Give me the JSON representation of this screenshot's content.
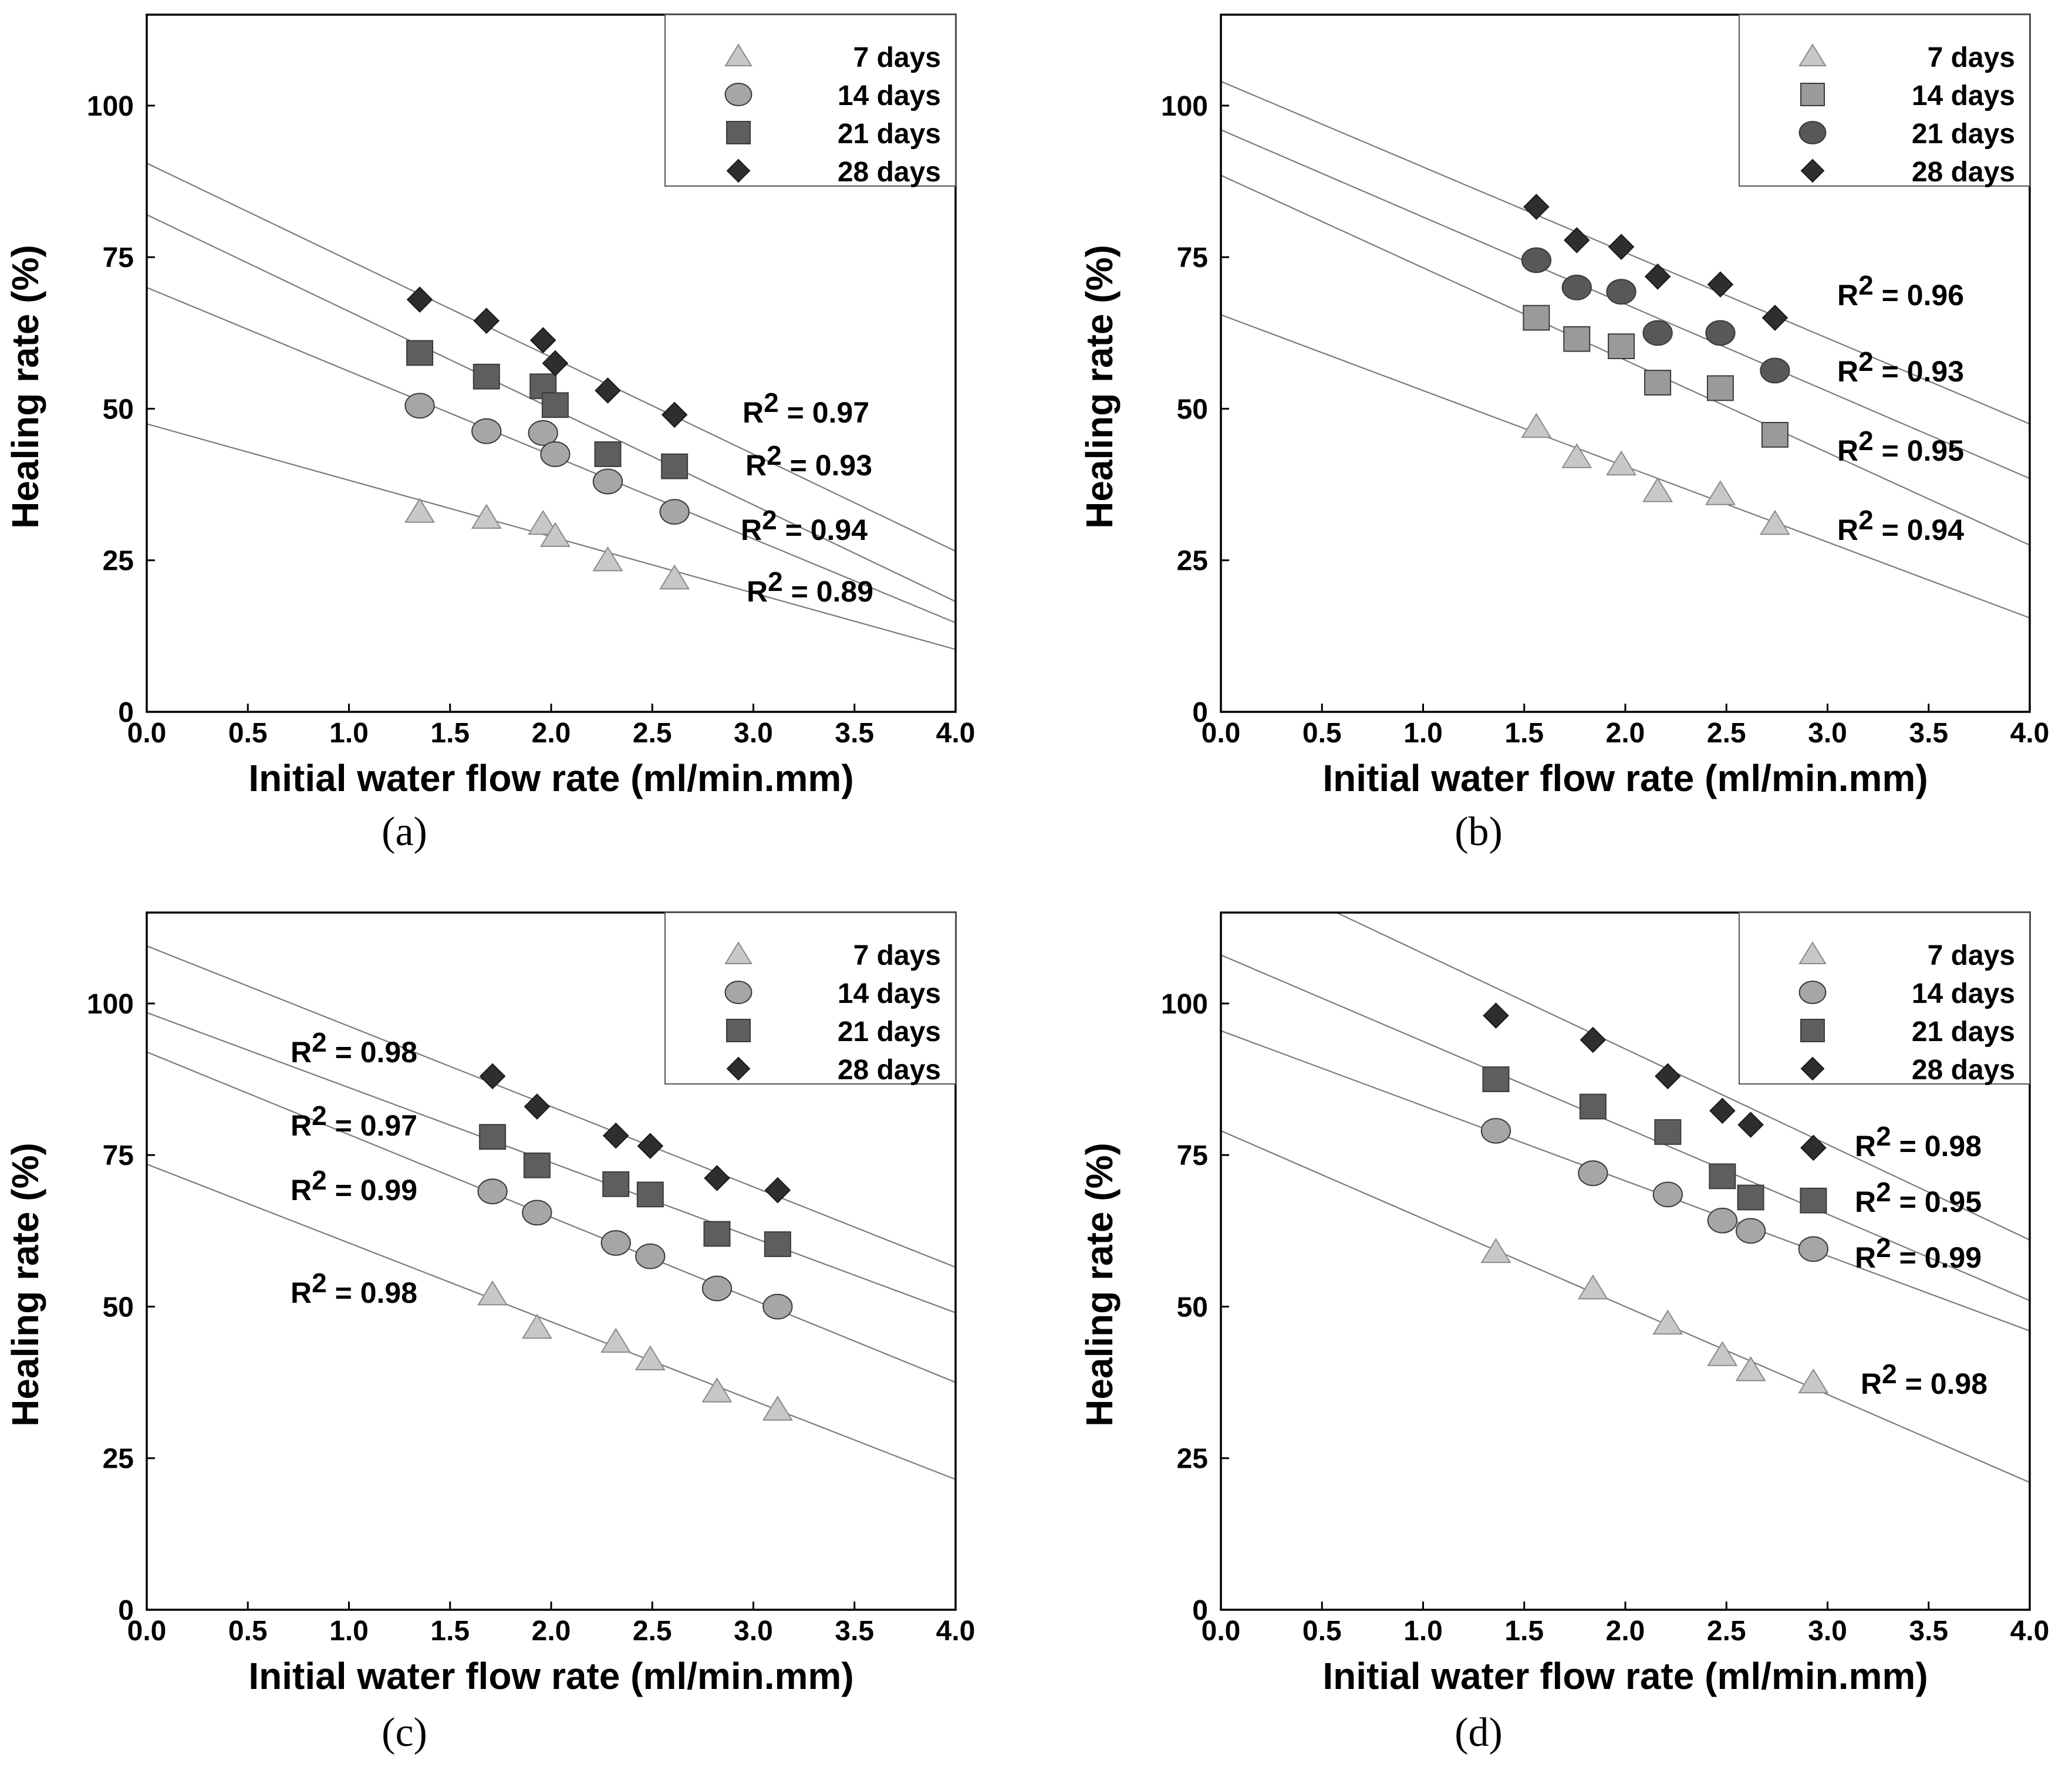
{
  "colors": {
    "7 days": "#c8c8c8",
    "14 days": "#a6a6a6",
    "21 days": "#5e5e5e",
    "28 days": "#2e2e2e",
    "14 days square": "#9a9a9a",
    "21 days circle": "#585858",
    "fit_line": "#7a7a7a",
    "axis": "#000000"
  },
  "chart_data": [
    {
      "id": "a",
      "type": "scatter",
      "panel_label": "(a)",
      "xlabel": "Initial water flow rate (ml/min.mm)",
      "ylabel": "Healing rate (%)",
      "xlim": [
        0,
        4
      ],
      "ylim": [
        0,
        115
      ],
      "xticks": [
        "0.0",
        "0.5",
        "1.0",
        "1.5",
        "2.0",
        "2.5",
        "3.0",
        "3.5",
        "4.0"
      ],
      "yticks": [
        "0",
        "25",
        "50",
        "75",
        "100"
      ],
      "legend_position": "top-right",
      "series": [
        {
          "name": "7 days",
          "marker": "triangle",
          "color_key": "7 days",
          "x": [
            1.35,
            1.68,
            1.96,
            2.02,
            2.28,
            2.61
          ],
          "y": [
            33,
            32,
            31,
            29,
            25,
            22
          ],
          "fit": [
            47.5,
            10.3
          ],
          "r2": "0.89"
        },
        {
          "name": "14 days",
          "marker": "circle",
          "color_key": "14 days",
          "x": [
            1.35,
            1.68,
            1.96,
            2.02,
            2.28,
            2.61
          ],
          "y": [
            50.5,
            46.3,
            46,
            42.5,
            38,
            33
          ],
          "fit": [
            70,
            14.7
          ],
          "r2": "0.94"
        },
        {
          "name": "21 days",
          "marker": "square",
          "color_key": "21 days",
          "x": [
            1.35,
            1.68,
            1.96,
            2.02,
            2.28,
            2.61
          ],
          "y": [
            59.2,
            55.3,
            53.7,
            50.6,
            42.5,
            40.5
          ],
          "fit": [
            82,
            18.2
          ],
          "r2": "0.93"
        },
        {
          "name": "28 days",
          "marker": "diamond",
          "color_key": "28 days",
          "x": [
            1.35,
            1.68,
            1.96,
            2.02,
            2.28,
            2.61
          ],
          "y": [
            68,
            64.5,
            61.3,
            57.5,
            53,
            49
          ],
          "fit": [
            90.5,
            26.5
          ],
          "r2": "0.97"
        }
      ],
      "r2_order": [
        "28 days",
        "21 days",
        "14 days",
        "7 days"
      ]
    },
    {
      "id": "b",
      "type": "scatter",
      "panel_label": "(b)",
      "xlabel": "Initial water flow rate (ml/min.mm)",
      "ylabel": "Healing rate (%)",
      "xlim": [
        0,
        4
      ],
      "ylim": [
        0,
        115
      ],
      "xticks": [
        "0.0",
        "0.5",
        "1.0",
        "1.5",
        "2.0",
        "2.5",
        "3.0",
        "3.5",
        "4.0"
      ],
      "yticks": [
        "0",
        "25",
        "50",
        "75",
        "100"
      ],
      "legend_position": "top-right",
      "series": [
        {
          "name": "7 days",
          "marker": "triangle",
          "color_key": "7 days",
          "x": [
            1.56,
            1.76,
            1.98,
            2.16,
            2.47,
            2.74
          ],
          "y": [
            47,
            42,
            40.8,
            36.4,
            35.9,
            31
          ],
          "fit": [
            65.5,
            15.5
          ],
          "r2": "0.94"
        },
        {
          "name": "14 days",
          "marker": "square",
          "color_key": "14 days square",
          "x": [
            1.56,
            1.76,
            1.98,
            2.16,
            2.47,
            2.74
          ],
          "y": [
            65,
            61.5,
            60.3,
            54.3,
            53.4,
            45.7
          ],
          "fit": [
            88.5,
            27.5
          ],
          "r2": "0.95"
        },
        {
          "name": "21 days",
          "marker": "circle",
          "color_key": "21 days circle",
          "x": [
            1.56,
            1.76,
            1.98,
            2.16,
            2.47,
            2.74
          ],
          "y": [
            74.5,
            70,
            69.3,
            62.5,
            62.5,
            56.3
          ],
          "fit": [
            96,
            38.5
          ],
          "r2": "0.93"
        },
        {
          "name": "28 days",
          "marker": "diamond",
          "color_key": "28 days",
          "x": [
            1.56,
            1.76,
            1.98,
            2.16,
            2.47,
            2.74
          ],
          "y": [
            83.3,
            77.8,
            76.7,
            71.8,
            70.5,
            65
          ],
          "fit": [
            104,
            47.5
          ],
          "r2": "0.96"
        }
      ],
      "r2_order": [
        "28 days",
        "21 days",
        "14 days",
        "7 days"
      ]
    },
    {
      "id": "c",
      "type": "scatter",
      "panel_label": "(c)",
      "xlabel": "Initial water flow rate (ml/min.mm)",
      "ylabel": "Healing rate (%)",
      "xlim": [
        0,
        4
      ],
      "ylim": [
        0,
        115
      ],
      "xticks": [
        "0.0",
        "0.5",
        "1.0",
        "1.5",
        "2.0",
        "2.5",
        "3.0",
        "3.5",
        "4.0"
      ],
      "yticks": [
        "0",
        "25",
        "50",
        "75",
        "100"
      ],
      "legend_position": "top-right",
      "series": [
        {
          "name": "7 days",
          "marker": "triangle",
          "color_key": "7 days",
          "x": [
            1.71,
            1.93,
            2.32,
            2.49,
            2.82,
            3.12
          ],
          "y": [
            52,
            46.5,
            44.2,
            41.3,
            36,
            33
          ],
          "fit": [
            73.5,
            21.5
          ],
          "r2": "0.98"
        },
        {
          "name": "14 days",
          "marker": "circle",
          "color_key": "14 days",
          "x": [
            1.71,
            1.93,
            2.32,
            2.49,
            2.82,
            3.12
          ],
          "y": [
            69,
            65.5,
            60.5,
            58.3,
            53,
            50
          ],
          "fit": [
            92,
            37.5
          ],
          "r2": "0.99"
        },
        {
          "name": "21 days",
          "marker": "square",
          "color_key": "21 days",
          "x": [
            1.71,
            1.93,
            2.32,
            2.49,
            2.82,
            3.12
          ],
          "y": [
            78,
            73.3,
            70.2,
            68.5,
            62,
            60.3
          ],
          "fit": [
            98.5,
            49
          ],
          "r2": "0.97"
        },
        {
          "name": "28 days",
          "marker": "diamond",
          "color_key": "28 days",
          "x": [
            1.71,
            1.93,
            2.32,
            2.49,
            2.82,
            3.12
          ],
          "y": [
            88,
            83,
            78.2,
            76.5,
            71.2,
            69.2
          ],
          "fit": [
            109.5,
            56.5
          ],
          "r2": "0.98"
        }
      ],
      "r2_order": [
        "28 days",
        "21 days",
        "14 days",
        "7 days"
      ]
    },
    {
      "id": "d",
      "type": "scatter",
      "panel_label": "(d)",
      "xlabel": "Initial water flow rate (ml/min.mm)",
      "ylabel": "Healing rate (%)",
      "xlim": [
        0,
        4
      ],
      "ylim": [
        0,
        115
      ],
      "xticks": [
        "0.0",
        "0.5",
        "1.0",
        "1.5",
        "2.0",
        "2.5",
        "3.0",
        "3.5",
        "4.0"
      ],
      "yticks": [
        "0",
        "25",
        "50",
        "75",
        "100"
      ],
      "legend_position": "top-right",
      "series": [
        {
          "name": "7 days",
          "marker": "triangle",
          "color_key": "7 days",
          "x": [
            1.36,
            1.84,
            2.21,
            2.48,
            2.62,
            2.93
          ],
          "y": [
            59,
            53,
            47.2,
            42,
            39.5,
            37.5
          ],
          "fit": [
            79,
            21
          ],
          "r2": "0.98"
        },
        {
          "name": "14 days",
          "marker": "circle",
          "color_key": "14 days",
          "x": [
            1.36,
            1.84,
            2.21,
            2.48,
            2.62,
            2.93
          ],
          "y": [
            79,
            72,
            68.5,
            64.2,
            62.5,
            59.5
          ],
          "fit": [
            95.5,
            46
          ],
          "r2": "0.99"
        },
        {
          "name": "21 days",
          "marker": "square",
          "color_key": "21 days",
          "x": [
            1.36,
            1.84,
            2.21,
            2.48,
            2.62,
            2.93
          ],
          "y": [
            87.5,
            83,
            78.8,
            71.5,
            68,
            67.5
          ],
          "fit": [
            108,
            51
          ],
          "r2": "0.95"
        },
        {
          "name": "28 days",
          "marker": "diamond",
          "color_key": "28 days",
          "x": [
            1.36,
            1.84,
            2.21,
            2.48,
            2.62,
            2.93
          ],
          "y": [
            98,
            94,
            88,
            82.3,
            80,
            76.2
          ],
          "fit": [
            124,
            61
          ],
          "r2": "0.98"
        }
      ],
      "r2_order": [
        "28 days",
        "21 days",
        "14 days",
        "7 days"
      ]
    }
  ]
}
